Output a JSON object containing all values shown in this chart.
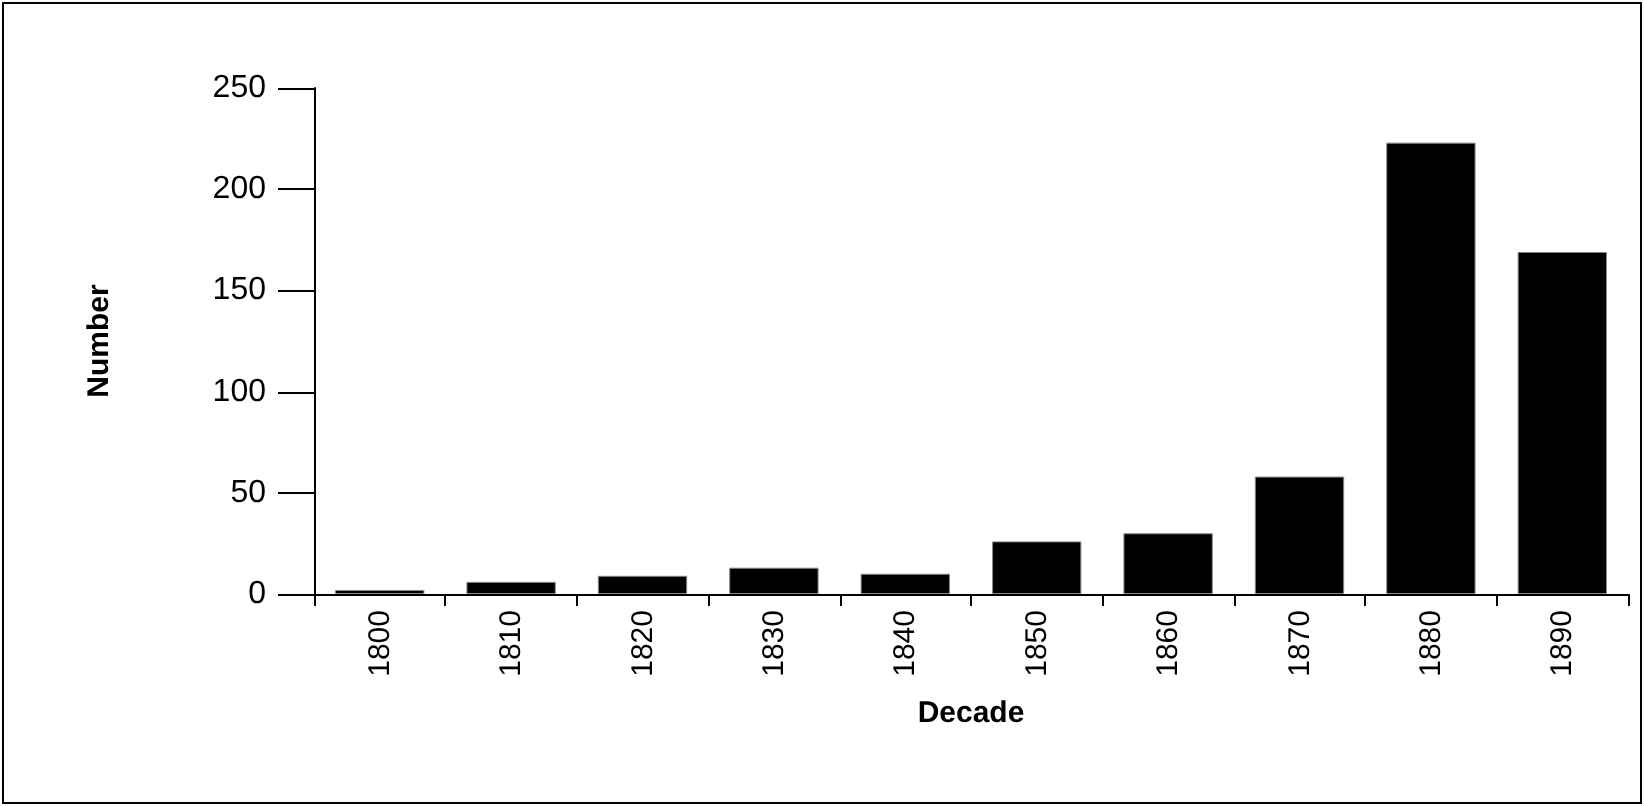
{
  "chart_data": {
    "type": "bar",
    "xlabel": "Decade",
    "ylabel": "Number",
    "categories": [
      "1800",
      "1810",
      "1820",
      "1830",
      "1840",
      "1850",
      "1860",
      "1870",
      "1880",
      "1890"
    ],
    "values": [
      2,
      6,
      9,
      13,
      10,
      26,
      30,
      58,
      223,
      169
    ],
    "color": "#000000",
    "ylim": [
      0,
      250
    ],
    "yticks": [
      0,
      50,
      100,
      150,
      200,
      250
    ],
    "grid": false
  }
}
